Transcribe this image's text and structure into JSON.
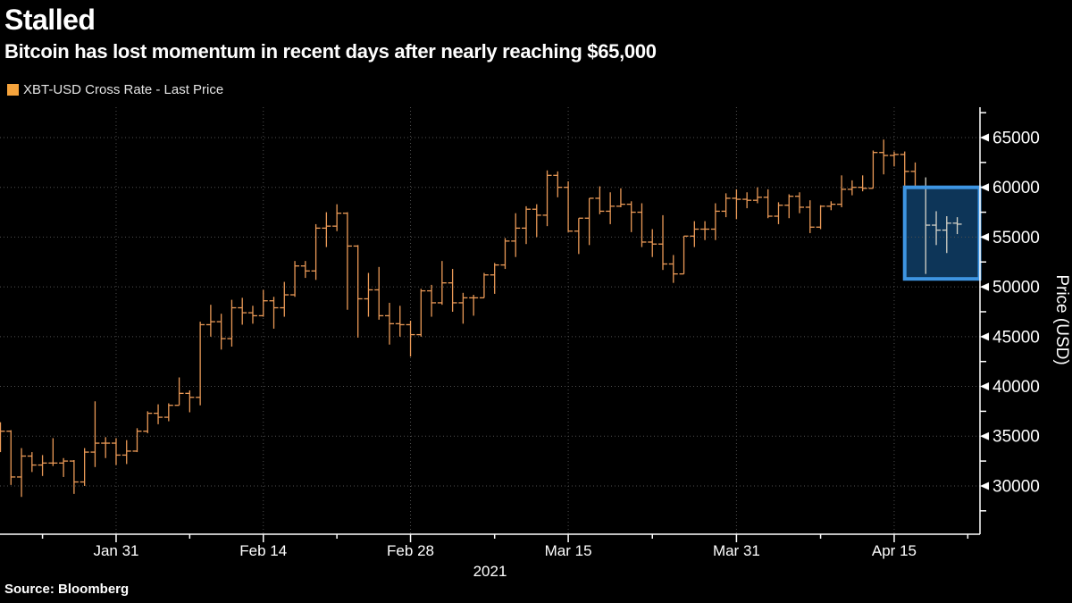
{
  "header": {
    "title": "Stalled",
    "subtitle": "Bitcoin has lost momentum in recent days after nearly reaching $65,000"
  },
  "legend": {
    "label": "XBT-USD Cross Rate - Last Price",
    "swatch_color": "#f5a33c"
  },
  "source": "Source: Bloomberg",
  "chart_data": {
    "type": "ohlc-bar",
    "title": "XBT-USD Cross Rate - Last Price",
    "ylabel": "Price (USD)",
    "x_footer_label": "2021",
    "ylim": [
      25150,
      68050
    ],
    "grid": true,
    "legend_position": "top-left",
    "colors": {
      "bar": "#eb9a57",
      "bar_highlighted": "#d6d3c8",
      "grid": "#4f4f4f",
      "axis": "#ffffff",
      "tick_label": "#ffffff",
      "box_border": "#3e95e2",
      "box_fill": "#0d3558"
    },
    "y_major_ticks": [
      30000,
      35000,
      40000,
      45000,
      50000,
      55000,
      60000,
      65000
    ],
    "y_minor_ticks": [
      27500,
      32500,
      37500,
      42500,
      47500,
      52500,
      57500,
      62500,
      67500
    ],
    "x_major_ticks": [
      "Jan 31",
      "Feb 14",
      "Feb 28",
      "Mar 15",
      "Mar 31",
      "Apr 15"
    ],
    "x_minor_tick_indices": [
      4,
      18,
      32,
      47,
      62,
      78,
      92
    ],
    "highlight_box": {
      "from_date": "Apr 16",
      "to_right_axis": true,
      "price_top": 60000,
      "price_bottom": 50800,
      "gray_bars_from_date": "Apr 18"
    },
    "series_columns": [
      "date",
      "open",
      "high",
      "low",
      "close"
    ],
    "series": [
      [
        "Jan 20",
        35500,
        36400,
        33400,
        35500
      ],
      [
        "Jan 21",
        35500,
        35600,
        30100,
        30900
      ],
      [
        "Jan 22",
        30900,
        33800,
        28900,
        33000
      ],
      [
        "Jan 23",
        33000,
        33400,
        31400,
        32100
      ],
      [
        "Jan 24",
        32100,
        33100,
        31000,
        32300
      ],
      [
        "Jan 25",
        32300,
        34800,
        32000,
        32300
      ],
      [
        "Jan 26",
        32300,
        32800,
        30900,
        32500
      ],
      [
        "Jan 27",
        32500,
        32600,
        29200,
        30400
      ],
      [
        "Jan 28",
        30400,
        33800,
        30000,
        33400
      ],
      [
        "Jan 29",
        33400,
        38500,
        31900,
        34300
      ],
      [
        "Jan 30",
        34300,
        34900,
        32800,
        34300
      ],
      [
        "Jan 31",
        34300,
        34800,
        32100,
        33100
      ],
      [
        "Feb 1",
        33100,
        34600,
        32200,
        33500
      ],
      [
        "Feb 2",
        33500,
        35800,
        33400,
        35500
      ],
      [
        "Feb 3",
        35500,
        37500,
        35300,
        37300
      ],
      [
        "Feb 4",
        37300,
        38200,
        36200,
        36900
      ],
      [
        "Feb 5",
        36900,
        38300,
        36500,
        38100
      ],
      [
        "Feb 6",
        38100,
        40900,
        38100,
        39300
      ],
      [
        "Feb 7",
        39300,
        39600,
        37400,
        38900
      ],
      [
        "Feb 8",
        38900,
        46500,
        38100,
        46200
      ],
      [
        "Feb 9",
        46200,
        48200,
        45000,
        46500
      ],
      [
        "Feb 10",
        46500,
        47300,
        43700,
        44800
      ],
      [
        "Feb 11",
        44800,
        48700,
        44000,
        47900
      ],
      [
        "Feb 12",
        47900,
        48900,
        46200,
        47400
      ],
      [
        "Feb 13",
        47400,
        48100,
        46300,
        47100
      ],
      [
        "Feb 14",
        47100,
        49700,
        47000,
        48600
      ],
      [
        "Feb 15",
        48600,
        49000,
        45800,
        47900
      ],
      [
        "Feb 16",
        47900,
        50500,
        47000,
        49200
      ],
      [
        "Feb 17",
        49200,
        52600,
        49000,
        52100
      ],
      [
        "Feb 18",
        52100,
        52600,
        50900,
        51600
      ],
      [
        "Feb 19",
        51600,
        56300,
        50700,
        55900
      ],
      [
        "Feb 20",
        55900,
        57500,
        54000,
        56100
      ],
      [
        "Feb 21",
        56100,
        58300,
        55600,
        57400
      ],
      [
        "Feb 22",
        57400,
        57500,
        47700,
        54100
      ],
      [
        "Feb 23",
        54100,
        54200,
        44900,
        48800
      ],
      [
        "Feb 24",
        48800,
        51400,
        47000,
        49700
      ],
      [
        "Feb 25",
        49700,
        52000,
        46700,
        47100
      ],
      [
        "Feb 26",
        47100,
        48400,
        44200,
        46300
      ],
      [
        "Feb 27",
        46300,
        48100,
        45000,
        46200
      ],
      [
        "Feb 28",
        46200,
        46600,
        43000,
        45200
      ],
      [
        "Mar 1",
        45200,
        49800,
        45000,
        49600
      ],
      [
        "Mar 2",
        49600,
        50200,
        47000,
        48400
      ],
      [
        "Mar 3",
        48400,
        52600,
        48200,
        50400
      ],
      [
        "Mar 4",
        50400,
        51800,
        47500,
        48400
      ],
      [
        "Mar 5",
        48400,
        49400,
        46300,
        48900
      ],
      [
        "Mar 6",
        48900,
        49200,
        47100,
        48900
      ],
      [
        "Mar 7",
        48900,
        51400,
        48900,
        51200
      ],
      [
        "Mar 8",
        51200,
        52400,
        49300,
        52200
      ],
      [
        "Mar 9",
        52200,
        54900,
        51800,
        54600
      ],
      [
        "Mar 10",
        54600,
        57400,
        53000,
        55900
      ],
      [
        "Mar 11",
        55900,
        58100,
        54300,
        57800
      ],
      [
        "Mar 12",
        57800,
        58300,
        55000,
        57200
      ],
      [
        "Mar 13",
        57200,
        61700,
        56100,
        61200
      ],
      [
        "Mar 14",
        61200,
        61600,
        59000,
        60000
      ],
      [
        "Mar 15",
        60000,
        60600,
        55500,
        55600
      ],
      [
        "Mar 16",
        55600,
        56900,
        53300,
        56900
      ],
      [
        "Mar 17",
        56900,
        58900,
        54200,
        58900
      ],
      [
        "Mar 18",
        58900,
        60100,
        57300,
        57600
      ],
      [
        "Mar 19",
        57600,
        59500,
        56300,
        58100
      ],
      [
        "Mar 20",
        58100,
        59900,
        58000,
        58300
      ],
      [
        "Mar 21",
        58300,
        58600,
        55500,
        57500
      ],
      [
        "Mar 22",
        57500,
        58400,
        54000,
        54500
      ],
      [
        "Mar 23",
        54500,
        55800,
        53000,
        54300
      ],
      [
        "Mar 24",
        54300,
        57200,
        51700,
        52300
      ],
      [
        "Mar 25",
        52300,
        53200,
        50400,
        51300
      ],
      [
        "Mar 26",
        51300,
        55100,
        51300,
        55100
      ],
      [
        "Mar 27",
        55100,
        56600,
        54000,
        55800
      ],
      [
        "Mar 28",
        55800,
        56600,
        54700,
        55800
      ],
      [
        "Mar 29",
        55800,
        58400,
        54700,
        57600
      ],
      [
        "Mar 30",
        57600,
        59400,
        57000,
        58900
      ],
      [
        "Mar 31",
        58900,
        59800,
        56800,
        58800
      ],
      [
        "Apr 1",
        58800,
        59500,
        57900,
        58700
      ],
      [
        "Apr 2",
        58700,
        60000,
        58400,
        59000
      ],
      [
        "Apr 3",
        59000,
        59800,
        56900,
        57100
      ],
      [
        "Apr 4",
        57100,
        58500,
        56300,
        58200
      ],
      [
        "Apr 5",
        58200,
        59300,
        56900,
        59100
      ],
      [
        "Apr 6",
        59100,
        59500,
        57400,
        58000
      ],
      [
        "Apr 7",
        58000,
        58700,
        55400,
        56000
      ],
      [
        "Apr 8",
        56000,
        58200,
        55800,
        58100
      ],
      [
        "Apr 9",
        58100,
        58600,
        57700,
        58300
      ],
      [
        "Apr 10",
        58300,
        61200,
        58000,
        59800
      ],
      [
        "Apr 11",
        59800,
        60700,
        59200,
        60000
      ],
      [
        "Apr 12",
        60000,
        61200,
        59600,
        59900
      ],
      [
        "Apr 13",
        59900,
        63700,
        59900,
        63500
      ],
      [
        "Apr 14",
        63500,
        64800,
        61300,
        63200
      ],
      [
        "Apr 15",
        63200,
        63600,
        62100,
        63300
      ],
      [
        "Apr 16",
        63300,
        63600,
        60100,
        61600
      ],
      [
        "Apr 17",
        61600,
        62500,
        60000,
        60100
      ],
      [
        "Apr 18",
        60100,
        61000,
        51300,
        56200
      ],
      [
        "Apr 19",
        56200,
        57600,
        54200,
        55700
      ],
      [
        "Apr 20",
        55700,
        57100,
        53400,
        56400
      ],
      [
        "Apr 21",
        56400,
        57000,
        55300,
        56300
      ]
    ]
  }
}
